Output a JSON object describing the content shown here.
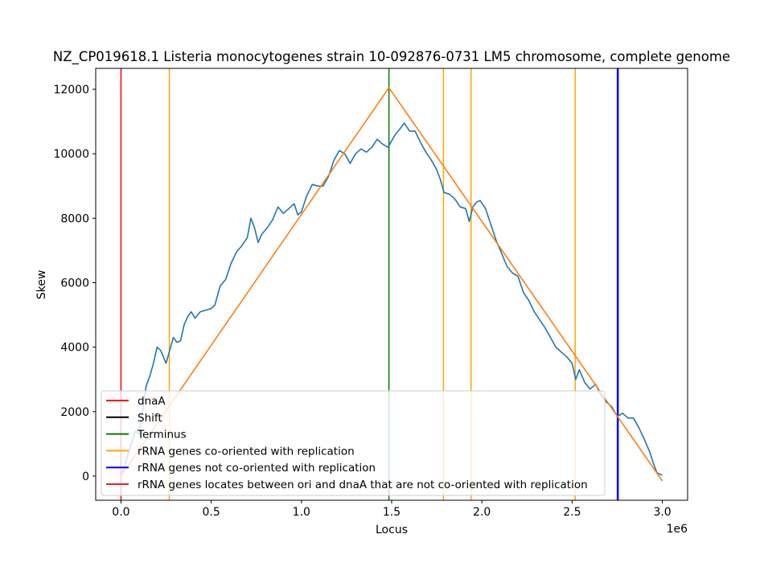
{
  "chart_data": {
    "type": "line",
    "title": "NZ_CP019618.1 Listeria monocytogenes strain 10-092876-0731 LM5 chromosome, complete genome",
    "xlabel": "Locus",
    "ylabel": "Skew",
    "x_offset_label": "1e6",
    "xlim": [
      -0.14,
      3.14
    ],
    "ylim": [
      -750,
      12650
    ],
    "x_ticks": [
      0.0,
      0.5,
      1.0,
      1.5,
      2.0,
      2.5,
      3.0
    ],
    "x_tick_labels": [
      "0.0",
      "0.5",
      "1.0",
      "1.5",
      "2.0",
      "2.5",
      "3.0"
    ],
    "y_ticks": [
      0,
      2000,
      4000,
      6000,
      8000,
      10000,
      12000
    ],
    "y_tick_labels": [
      "0",
      "2000",
      "4000",
      "6000",
      "8000",
      "10000",
      "12000"
    ],
    "grid": false,
    "legend_position": "lower-left",
    "skew_series": {
      "color": "#1f77b4",
      "points": [
        [
          0.0,
          0
        ],
        [
          0.02,
          300
        ],
        [
          0.04,
          700
        ],
        [
          0.06,
          1050
        ],
        [
          0.08,
          1400
        ],
        [
          0.1,
          1300
        ],
        [
          0.12,
          2000
        ],
        [
          0.14,
          2800
        ],
        [
          0.16,
          3100
        ],
        [
          0.18,
          3500
        ],
        [
          0.2,
          4000
        ],
        [
          0.22,
          3900
        ],
        [
          0.25,
          3500
        ],
        [
          0.27,
          3900
        ],
        [
          0.29,
          4300
        ],
        [
          0.31,
          4150
        ],
        [
          0.33,
          4200
        ],
        [
          0.35,
          4700
        ],
        [
          0.37,
          4950
        ],
        [
          0.39,
          5100
        ],
        [
          0.41,
          4900
        ],
        [
          0.44,
          5100
        ],
        [
          0.47,
          5150
        ],
        [
          0.5,
          5200
        ],
        [
          0.52,
          5300
        ],
        [
          0.55,
          5900
        ],
        [
          0.58,
          6100
        ],
        [
          0.61,
          6600
        ],
        [
          0.64,
          6950
        ],
        [
          0.67,
          7150
        ],
        [
          0.7,
          7400
        ],
        [
          0.72,
          8000
        ],
        [
          0.74,
          7700
        ],
        [
          0.76,
          7250
        ],
        [
          0.78,
          7500
        ],
        [
          0.81,
          7700
        ],
        [
          0.84,
          7950
        ],
        [
          0.87,
          8350
        ],
        [
          0.9,
          8150
        ],
        [
          0.93,
          8300
        ],
        [
          0.96,
          8450
        ],
        [
          0.98,
          8100
        ],
        [
          1.0,
          8200
        ],
        [
          1.03,
          8700
        ],
        [
          1.06,
          9050
        ],
        [
          1.09,
          9000
        ],
        [
          1.12,
          9000
        ],
        [
          1.15,
          9300
        ],
        [
          1.18,
          9800
        ],
        [
          1.21,
          10100
        ],
        [
          1.24,
          10000
        ],
        [
          1.27,
          9700
        ],
        [
          1.3,
          10000
        ],
        [
          1.33,
          10150
        ],
        [
          1.36,
          10050
        ],
        [
          1.39,
          10200
        ],
        [
          1.42,
          10450
        ],
        [
          1.45,
          10300
        ],
        [
          1.48,
          10200
        ],
        [
          1.5,
          10400
        ],
        [
          1.52,
          10600
        ],
        [
          1.55,
          10800
        ],
        [
          1.57,
          10950
        ],
        [
          1.6,
          10700
        ],
        [
          1.63,
          10700
        ],
        [
          1.66,
          10350
        ],
        [
          1.69,
          10050
        ],
        [
          1.72,
          9800
        ],
        [
          1.75,
          9500
        ],
        [
          1.77,
          9200
        ],
        [
          1.79,
          8800
        ],
        [
          1.82,
          8750
        ],
        [
          1.85,
          8600
        ],
        [
          1.88,
          8350
        ],
        [
          1.91,
          8300
        ],
        [
          1.93,
          7900
        ],
        [
          1.95,
          8350
        ],
        [
          1.97,
          8500
        ],
        [
          1.99,
          8550
        ],
        [
          2.02,
          8300
        ],
        [
          2.05,
          7800
        ],
        [
          2.08,
          7300
        ],
        [
          2.11,
          6900
        ],
        [
          2.14,
          6500
        ],
        [
          2.17,
          6300
        ],
        [
          2.2,
          6200
        ],
        [
          2.23,
          5700
        ],
        [
          2.26,
          5450
        ],
        [
          2.29,
          5100
        ],
        [
          2.32,
          4850
        ],
        [
          2.35,
          4600
        ],
        [
          2.38,
          4300
        ],
        [
          2.41,
          4000
        ],
        [
          2.44,
          3850
        ],
        [
          2.47,
          3700
        ],
        [
          2.5,
          3500
        ],
        [
          2.52,
          3000
        ],
        [
          2.54,
          3300
        ],
        [
          2.57,
          2900
        ],
        [
          2.6,
          2700
        ],
        [
          2.63,
          2850
        ],
        [
          2.66,
          2500
        ],
        [
          2.69,
          2300
        ],
        [
          2.72,
          2150
        ],
        [
          2.75,
          1850
        ],
        [
          2.78,
          1950
        ],
        [
          2.81,
          1800
        ],
        [
          2.84,
          1800
        ],
        [
          2.87,
          1500
        ],
        [
          2.9,
          1150
        ],
        [
          2.93,
          750
        ],
        [
          2.95,
          400
        ],
        [
          2.97,
          100
        ],
        [
          2.99,
          50
        ],
        [
          3.0,
          30
        ]
      ]
    },
    "fit_series": {
      "color": "#ff7f0e",
      "points": [
        [
          0.0,
          0
        ],
        [
          1.485,
          12050
        ],
        [
          3.0,
          -150
        ]
      ]
    },
    "vertical_lines": [
      {
        "category": "dnaA",
        "x": 0.0,
        "color": "#ff0000"
      },
      {
        "category": "terminus",
        "x": 1.485,
        "color": "#008000"
      },
      {
        "category": "rRNA-co",
        "x": 0.268,
        "color": "#ffa500"
      },
      {
        "category": "rRNA-co",
        "x": 1.787,
        "color": "#ffa500"
      },
      {
        "category": "rRNA-co",
        "x": 1.94,
        "color": "#ffa500"
      },
      {
        "category": "rRNA-co",
        "x": 2.517,
        "color": "#ffa500"
      },
      {
        "category": "rRNA-not",
        "x": 2.753,
        "color": "#0000ff"
      }
    ],
    "legend": [
      {
        "label": "dnaA",
        "color": "#ff0000"
      },
      {
        "label": "Shift",
        "color": "#000000"
      },
      {
        "label": "Terminus",
        "color": "#008000"
      },
      {
        "label": "rRNA genes co-oriented with replication",
        "color": "#ffa500"
      },
      {
        "label": "rRNA genes not co-oriented with replication",
        "color": "#0000ff"
      },
      {
        "label": "rRNA genes locates between ori and dnaA that are not co-oriented with replication",
        "color": "#d62728"
      }
    ]
  }
}
